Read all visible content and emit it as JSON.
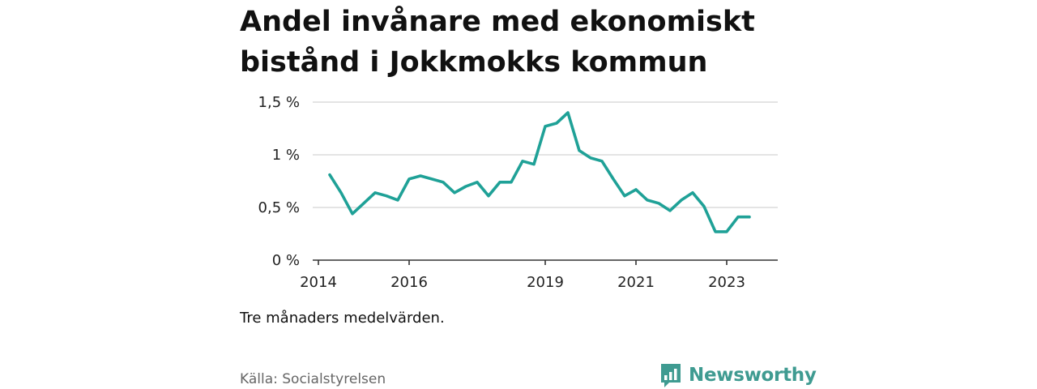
{
  "header": {
    "title": "Andel invånare med ekonomiskt bistånd i Jokkmokks kommun"
  },
  "footer": {
    "note": "Tre månaders medelvärden.",
    "source": "Källa: Socialstyrelsen",
    "brand": "Newsworthy"
  },
  "colors": {
    "line": "#1fa197",
    "grid": "#dcdcdc",
    "brand": "#3f9b91"
  },
  "icons": {
    "brand_logo": "bar-chart-speech-bubble-icon"
  },
  "chart_data": {
    "type": "line",
    "title": "Andel invånare med ekonomiskt bistånd i Jokkmokks kommun",
    "xlabel": "",
    "ylabel": "",
    "ylim": [
      0,
      1.5
    ],
    "xlim": [
      "2014-01",
      "2024-01"
    ],
    "y_ticks": [
      {
        "value": 0,
        "label": "0 %"
      },
      {
        "value": 0.5,
        "label": "0,5 %"
      },
      {
        "value": 1,
        "label": "1 %"
      },
      {
        "value": 1.5,
        "label": "1,5 %"
      }
    ],
    "x_ticks": [
      {
        "value": "2014-01",
        "label": "2014"
      },
      {
        "value": "2016-01",
        "label": "2016"
      },
      {
        "value": "2019-01",
        "label": "2019"
      },
      {
        "value": "2021-01",
        "label": "2021"
      },
      {
        "value": "2023-01",
        "label": "2023"
      }
    ],
    "grid": true,
    "series": [
      {
        "x": [
          "2014-04",
          "2014-07",
          "2014-10",
          "2015-01",
          "2015-04",
          "2015-07",
          "2015-10",
          "2016-01",
          "2016-04",
          "2016-07",
          "2016-10",
          "2017-01",
          "2017-04",
          "2017-07",
          "2017-10",
          "2018-01",
          "2018-04",
          "2018-07",
          "2018-10",
          "2019-01",
          "2019-04",
          "2019-07",
          "2019-10",
          "2020-01",
          "2020-04",
          "2020-07",
          "2020-10",
          "2021-01",
          "2021-04",
          "2021-07",
          "2021-10",
          "2022-01",
          "2022-04",
          "2022-07",
          "2022-10",
          "2023-01",
          "2023-04",
          "2023-07"
        ],
        "values": [
          0.81,
          0.64,
          0.44,
          0.54,
          0.64,
          0.61,
          0.57,
          0.77,
          0.8,
          0.77,
          0.74,
          0.64,
          0.7,
          0.74,
          0.61,
          0.74,
          0.74,
          0.94,
          0.91,
          1.27,
          1.3,
          1.4,
          1.04,
          0.97,
          0.94,
          0.77,
          0.61,
          0.67,
          0.57,
          0.54,
          0.47,
          0.57,
          0.64,
          0.51,
          0.27,
          0.27,
          0.41,
          0.41
        ]
      }
    ]
  }
}
